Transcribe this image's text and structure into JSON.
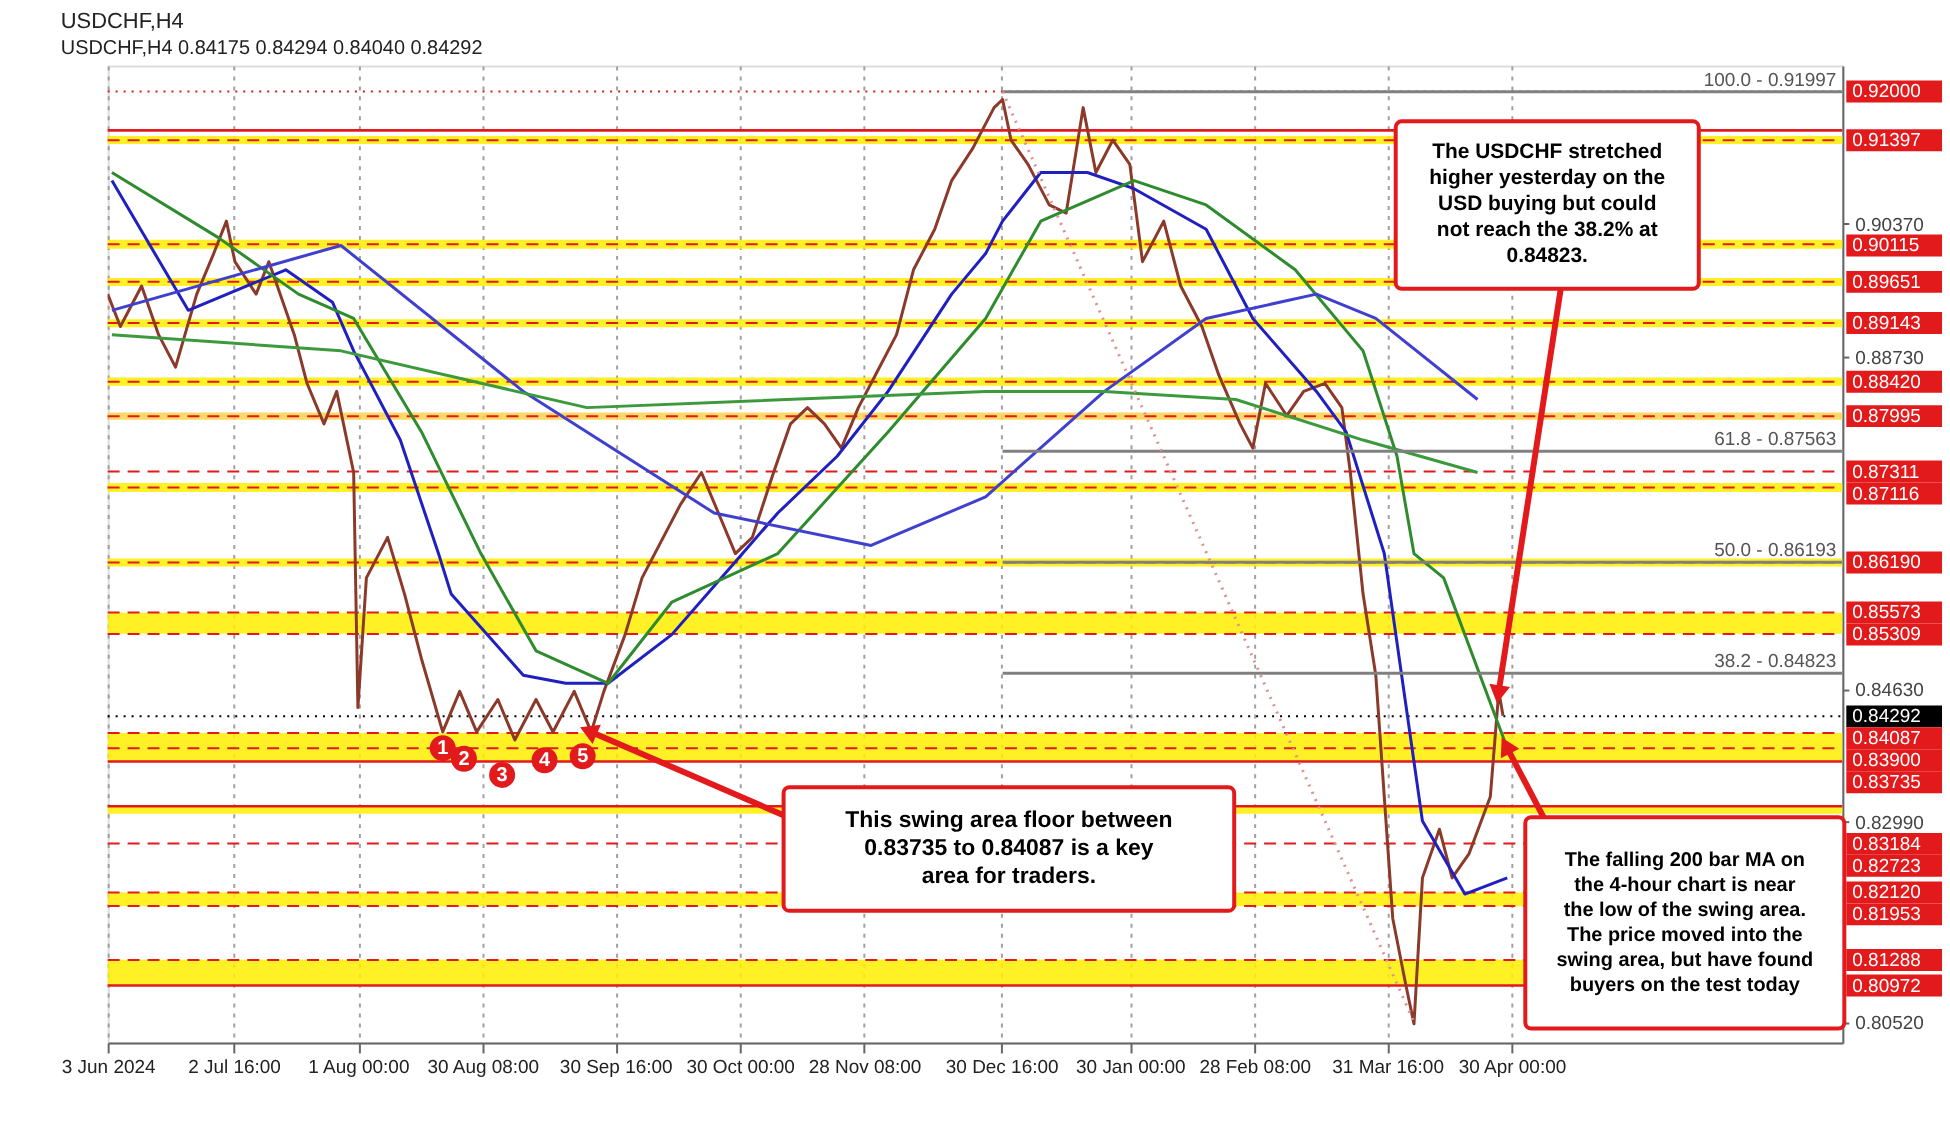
{
  "chart_data": {
    "type": "line",
    "title": "USDCHF,H4",
    "subtitle": "USDCHF,H4  0.84175 0.84294 0.84040 0.84292",
    "xlim": [
      "2024-06-03",
      "2025-07-17"
    ],
    "xticks": [
      {
        "value": "2024-06-03",
        "label": "3 Jun 2024"
      },
      {
        "value": "2024-07-02T16:00",
        "label": "2 Jul 16:00"
      },
      {
        "value": "2024-08-01",
        "label": "1 Aug 00:00"
      },
      {
        "value": "2024-08-30T08:00",
        "label": "30 Aug 08:00"
      },
      {
        "value": "2024-09-30T16:00",
        "label": "30 Sep 16:00"
      },
      {
        "value": "2024-10-30",
        "label": "30 Oct 00:00"
      },
      {
        "value": "2024-11-28T08:00",
        "label": "28 Nov 08:00"
      },
      {
        "value": "2024-12-30T16:00",
        "label": "30 Dec 16:00"
      },
      {
        "value": "2025-01-30",
        "label": "30 Jan 00:00"
      },
      {
        "value": "2025-02-28T08:00",
        "label": "28 Feb 08:00"
      },
      {
        "value": "2025-03-31T16:00",
        "label": "31 Mar 16:00"
      },
      {
        "value": "2025-04-30",
        "label": "30 Apr 00:00"
      }
    ],
    "ylim": [
      0.8027,
      0.9232
    ],
    "yticks": [
      {
        "value": 0.9037,
        "label": "0.90370"
      },
      {
        "value": 0.8873,
        "label": "0.88730"
      },
      {
        "value": 0.8463,
        "label": "0.84630"
      },
      {
        "value": 0.8299,
        "label": "0.82990"
      },
      {
        "value": 0.8052,
        "label": "0.80520"
      }
    ],
    "grid": "x",
    "series": [
      {
        "color": "#8b3a2a",
        "x": [
          "2024-06-03",
          "2024-06-06",
          "2024-06-11",
          "2024-06-15",
          "2024-06-19",
          "2024-06-24",
          "2024-06-28",
          "2024-07-01",
          "2024-07-03",
          "2024-07-08",
          "2024-07-11",
          "2024-07-13",
          "2024-07-17",
          "2024-07-20",
          "2024-07-24",
          "2024-07-27",
          "2024-07-31",
          "2024-08-01",
          "2024-08-03",
          "2024-08-08",
          "2024-08-12",
          "2024-08-16",
          "2024-08-21",
          "2024-08-25",
          "2024-08-29",
          "2024-09-03",
          "2024-09-07",
          "2024-09-12",
          "2024-09-16",
          "2024-09-21",
          "2024-09-25",
          "2024-09-28",
          "2024-10-03",
          "2024-10-07",
          "2024-10-12",
          "2024-10-16",
          "2024-10-21",
          "2024-10-25",
          "2024-10-29",
          "2024-11-02",
          "2024-11-07",
          "2024-11-11",
          "2024-11-15",
          "2024-11-19",
          "2024-11-23",
          "2024-11-27",
          "2024-12-01",
          "2024-12-06",
          "2024-12-10",
          "2024-12-15",
          "2024-12-19",
          "2024-12-24",
          "2024-12-29",
          "2024-12-31",
          "2025-01-02",
          "2025-01-06",
          "2025-01-11",
          "2025-01-15",
          "2025-01-19",
          "2025-01-22",
          "2025-01-26",
          "2025-01-30",
          "2025-02-02",
          "2025-02-07",
          "2025-02-11",
          "2025-02-16",
          "2025-02-20",
          "2025-02-25",
          "2025-02-28",
          "2025-03-03",
          "2025-03-08",
          "2025-03-12",
          "2025-03-17",
          "2025-03-21",
          "2025-03-23",
          "2025-03-26",
          "2025-03-29",
          "2025-03-31",
          "2025-04-02",
          "2025-04-05",
          "2025-04-07",
          "2025-04-09",
          "2025-04-13",
          "2025-04-16",
          "2025-04-20",
          "2025-04-25",
          "2025-04-27",
          "2025-04-28"
        ],
        "values": [
          0.895,
          0.891,
          0.896,
          0.89,
          0.886,
          0.895,
          0.9,
          0.904,
          0.899,
          0.895,
          0.899,
          0.896,
          0.89,
          0.884,
          0.879,
          0.883,
          0.873,
          0.844,
          0.86,
          0.865,
          0.858,
          0.85,
          0.841,
          0.846,
          0.841,
          0.845,
          0.84,
          0.845,
          0.841,
          0.846,
          0.841,
          0.846,
          0.853,
          0.86,
          0.865,
          0.869,
          0.873,
          0.868,
          0.863,
          0.865,
          0.873,
          0.879,
          0.881,
          0.879,
          0.876,
          0.881,
          0.885,
          0.89,
          0.898,
          0.903,
          0.909,
          0.913,
          0.918,
          0.919,
          0.914,
          0.911,
          0.906,
          0.905,
          0.918,
          0.91,
          0.914,
          0.911,
          0.899,
          0.904,
          0.896,
          0.891,
          0.885,
          0.879,
          0.876,
          0.884,
          0.88,
          0.883,
          0.884,
          0.881,
          0.873,
          0.858,
          0.848,
          0.833,
          0.818,
          0.81,
          0.805,
          0.823,
          0.829,
          0.823,
          0.826,
          0.833,
          0.846,
          0.843
        ]
      },
      {
        "color": "#2020c0",
        "x": [
          "2024-06-04",
          "2024-06-22",
          "2024-07-15",
          "2024-07-26",
          "2024-07-31",
          "2024-08-11",
          "2024-08-20",
          "2024-08-23",
          "2024-09-09",
          "2024-09-19",
          "2024-09-29",
          "2024-10-14",
          "2024-10-29",
          "2024-11-08",
          "2024-11-22",
          "2024-12-04",
          "2024-12-19",
          "2024-12-27",
          "2024-12-31",
          "2025-01-09",
          "2025-01-20",
          "2025-01-31",
          "2025-02-17",
          "2025-02-28",
          "2025-03-15",
          "2025-03-22",
          "2025-03-31",
          "2025-04-09",
          "2025-04-19",
          "2025-04-29"
        ],
        "values": [
          0.909,
          0.893,
          0.898,
          0.894,
          0.888,
          0.877,
          0.863,
          0.858,
          0.848,
          0.847,
          0.847,
          0.853,
          0.862,
          0.868,
          0.875,
          0.883,
          0.895,
          0.9,
          0.904,
          0.91,
          0.91,
          0.908,
          0.903,
          0.892,
          0.883,
          0.878,
          0.863,
          0.83,
          0.821,
          0.823
        ]
      },
      {
        "color": "#2e8b2e",
        "x": [
          "2024-06-04",
          "2024-06-29",
          "2024-07-18",
          "2024-07-31",
          "2024-08-16",
          "2024-08-30",
          "2024-09-12",
          "2024-09-29",
          "2024-10-14",
          "2024-11-08",
          "2024-12-04",
          "2024-12-27",
          "2025-01-09",
          "2025-01-31",
          "2025-02-17",
          "2025-03-10",
          "2025-03-26",
          "2025-04-03",
          "2025-04-07",
          "2025-04-14",
          "2025-04-29"
        ],
        "values": [
          0.91,
          0.902,
          0.895,
          0.892,
          0.878,
          0.863,
          0.851,
          0.847,
          0.857,
          0.863,
          0.878,
          0.892,
          0.904,
          0.909,
          0.906,
          0.898,
          0.888,
          0.875,
          0.863,
          0.86,
          0.839
        ]
      },
      {
        "color": "#4040d0",
        "x": [
          "2024-06-04",
          "2024-07-28",
          "2024-09-09",
          "2024-10-24",
          "2024-11-30",
          "2024-12-27",
          "2025-01-24",
          "2025-02-17",
          "2025-03-15",
          "2025-03-29",
          "2025-04-22"
        ],
        "values": [
          0.893,
          0.901,
          0.883,
          0.868,
          0.864,
          0.87,
          0.883,
          0.892,
          0.895,
          0.892,
          0.882
        ]
      },
      {
        "color": "#3c9a3c",
        "x": [
          "2024-06-04",
          "2024-07-28",
          "2024-09-24",
          "2024-12-27",
          "2025-01-24",
          "2025-02-24",
          "2025-03-26",
          "2025-04-22"
        ],
        "values": [
          0.89,
          0.888,
          0.881,
          0.883,
          0.883,
          0.882,
          0.877,
          0.873
        ]
      },
      {
        "color": "#808080",
        "x": [
          "2024-12-31",
          "2025-07-17"
        ],
        "values": [
          0.91997,
          0.91997
        ]
      },
      {
        "color": "#808080",
        "x": [
          "2024-12-31",
          "2025-07-17"
        ],
        "values": [
          0.87563,
          0.87563
        ]
      },
      {
        "color": "#808080",
        "x": [
          "2024-12-31",
          "2025-07-17"
        ],
        "values": [
          0.86193,
          0.86193
        ]
      },
      {
        "color": "#808080",
        "x": [
          "2024-12-31",
          "2025-07-17"
        ],
        "values": [
          0.84823,
          0.84823
        ]
      },
      {
        "color": "#e09090",
        "line_style": "dotted",
        "x": [
          "2024-12-31",
          "2025-04-07"
        ],
        "values": [
          0.91997,
          0.8052
        ]
      }
    ],
    "bands": [
      {
        "axis": "y",
        "from": 0.9135,
        "to": 0.9145,
        "color": "#ffee00"
      },
      {
        "axis": "y",
        "from": 0.9006,
        "to": 0.9017,
        "color": "#ffee00"
      },
      {
        "axis": "y",
        "from": 0.896,
        "to": 0.897,
        "color": "#ffee00"
      },
      {
        "axis": "y",
        "from": 0.8909,
        "to": 0.8919,
        "color": "#ffee00"
      },
      {
        "axis": "y",
        "from": 0.8837,
        "to": 0.8847,
        "color": "#ffee00"
      },
      {
        "axis": "y",
        "from": 0.8795,
        "to": 0.8804,
        "color": "#ffd24d"
      },
      {
        "axis": "y",
        "from": 0.8706,
        "to": 0.8717,
        "color": "#ffee00"
      },
      {
        "axis": "y",
        "from": 0.8614,
        "to": 0.8624,
        "color": "#ffee00"
      },
      {
        "axis": "y",
        "from": 0.8531,
        "to": 0.8557,
        "color": "#ffee00"
      },
      {
        "axis": "y",
        "from": 0.83735,
        "to": 0.84087,
        "color": "#ffee00"
      },
      {
        "axis": "y",
        "from": 0.8309,
        "to": 0.832,
        "color": "#ffee00"
      },
      {
        "axis": "y",
        "from": 0.8195,
        "to": 0.8212,
        "color": "#ffee00"
      },
      {
        "axis": "y",
        "from": 0.8097,
        "to": 0.8129,
        "color": "#ffee00"
      }
    ],
    "ref_lines": [
      {
        "axis": "y",
        "value": 0.92,
        "label": "0.92000",
        "color": "#e31a1c",
        "line_style": "dotted"
      },
      {
        "axis": "y",
        "value": 0.9152,
        "color": "#e31a1c",
        "line_style": "solid"
      },
      {
        "axis": "y",
        "value": 0.91397,
        "label": "0.91397",
        "color": "#e31a1c",
        "line_style": "dashed"
      },
      {
        "axis": "y",
        "value": 0.90115,
        "label": "0.90115",
        "color": "#e31a1c",
        "line_style": "dashed"
      },
      {
        "axis": "y",
        "value": 0.89651,
        "label": "0.89651",
        "color": "#e31a1c",
        "line_style": "dashed"
      },
      {
        "axis": "y",
        "value": 0.89143,
        "label": "0.89143",
        "color": "#e31a1c",
        "line_style": "dashed"
      },
      {
        "axis": "y",
        "value": 0.8842,
        "label": "0.88420",
        "color": "#e31a1c",
        "line_style": "dashed"
      },
      {
        "axis": "y",
        "value": 0.87995,
        "label": "0.87995",
        "color": "#e31a1c",
        "line_style": "dashed"
      },
      {
        "axis": "y",
        "value": 0.87311,
        "label": "0.87311",
        "color": "#e31a1c",
        "line_style": "dashed"
      },
      {
        "axis": "y",
        "value": 0.87116,
        "label": "0.87116",
        "color": "#e31a1c",
        "line_style": "dashed"
      },
      {
        "axis": "y",
        "value": 0.8619,
        "label": "0.86190",
        "color": "#e31a1c",
        "line_style": "dashed"
      },
      {
        "axis": "y",
        "value": 0.85573,
        "label": "0.85573",
        "color": "#e31a1c",
        "line_style": "dashed"
      },
      {
        "axis": "y",
        "value": 0.85309,
        "label": "0.85309",
        "color": "#e31a1c",
        "line_style": "dashed"
      },
      {
        "axis": "y",
        "value": 0.84292,
        "label": "0.84292",
        "color": "#000000",
        "line_style": "dotted"
      },
      {
        "axis": "y",
        "value": 0.84087,
        "label": "0.84087",
        "color": "#e31a1c",
        "line_style": "dashed"
      },
      {
        "axis": "y",
        "value": 0.839,
        "label": "0.83900",
        "color": "#e31a1c",
        "line_style": "dashed"
      },
      {
        "axis": "y",
        "value": 0.83735,
        "label": "0.83735",
        "color": "#e31a1c",
        "line_style": "solid"
      },
      {
        "axis": "y",
        "value": 0.83184,
        "label": "0.83184",
        "color": "#e31a1c",
        "line_style": "solid"
      },
      {
        "axis": "y",
        "value": 0.82723,
        "label": "0.82723",
        "color": "#e31a1c",
        "line_style": "dashed"
      },
      {
        "axis": "y",
        "value": 0.8212,
        "label": "0.82120",
        "color": "#e31a1c",
        "line_style": "dashed"
      },
      {
        "axis": "y",
        "value": 0.81953,
        "label": "0.81953",
        "color": "#e31a1c",
        "line_style": "dashed"
      },
      {
        "axis": "y",
        "value": 0.81288,
        "label": "0.81288",
        "color": "#e31a1c",
        "line_style": "dashed"
      },
      {
        "axis": "y",
        "value": 0.80972,
        "label": "0.80972",
        "color": "#e31a1c",
        "line_style": "solid"
      }
    ],
    "annotations": [
      {
        "text": "1",
        "x": "2024-08-21",
        "y": 0.839
      },
      {
        "text": "2",
        "x": "2024-08-26",
        "y": 0.8377
      },
      {
        "text": "3",
        "x": "2024-09-04",
        "y": 0.8357
      },
      {
        "text": "4",
        "x": "2024-09-14",
        "y": 0.8375
      },
      {
        "text": "5",
        "x": "2024-09-23",
        "y": 0.838
      },
      {
        "text": "100.0 - 0.91997",
        "x": "2025-07-17",
        "y": 0.91997
      },
      {
        "text": "61.8 - 0.87563",
        "x": "2025-07-17",
        "y": 0.87563
      },
      {
        "text": "50.0 - 0.86193",
        "x": "2025-07-17",
        "y": 0.86193
      },
      {
        "text": "38.2 - 0.84823",
        "x": "2025-07-17",
        "y": 0.84823
      },
      {
        "text": "This swing area floor between 0.83735 to 0.84087 is a key area for traders.",
        "x": "2024-09-25",
        "y": 0.841
      },
      {
        "text": "The USDCHF stretched higher yesterday on the USD buying but could not reach the 38.2% at 0.84823.",
        "x": "2025-04-27",
        "y": 0.846
      },
      {
        "text": "The falling 200 bar MA on the 4-hour chart is near the low of the swing area. The price moved into the swing area, but  have found buyers on the test today",
        "x": "2025-04-29",
        "y": 0.839
      }
    ]
  }
}
